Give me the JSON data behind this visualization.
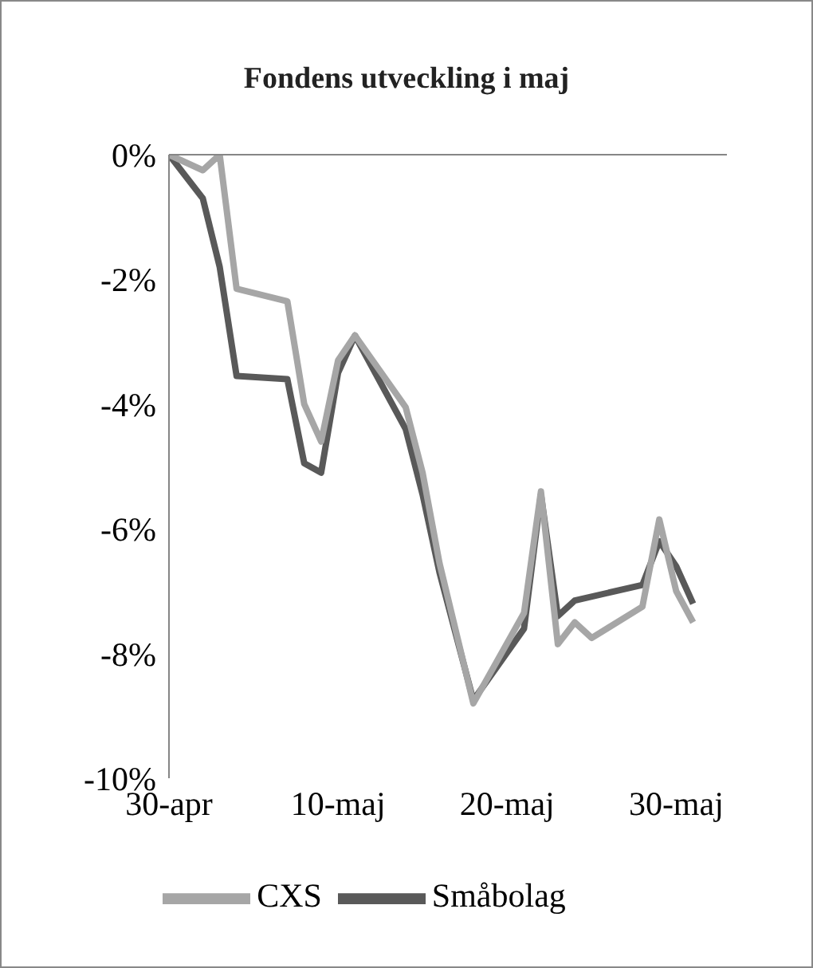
{
  "chart_data": {
    "type": "line",
    "title": "Fondens utveckling i maj",
    "series": [
      {
        "name": "Småbolag",
        "color": "#595959",
        "x": [
          "--04-30",
          "--05-02",
          "--05-03",
          "--05-04",
          "--05-07",
          "--05-08",
          "--05-09",
          "--05-10",
          "--05-11",
          "--05-14",
          "--05-15",
          "--05-16",
          "--05-18",
          "--05-21",
          "--05-22",
          "--05-23",
          "--05-24",
          "--05-28",
          "--05-29",
          "--05-30",
          "--05-31"
        ],
        "values": [
          0,
          -0.7,
          -1.8,
          -3.55,
          -3.6,
          -4.95,
          -5.1,
          -3.5,
          -2.9,
          -4.4,
          -5.45,
          -6.7,
          -8.75,
          -7.6,
          -5.45,
          -7.4,
          -7.15,
          -6.9,
          -6.2,
          -6.6,
          -7.2
        ]
      },
      {
        "name": "CXS",
        "color": "#a6a6a6",
        "x": [
          "--04-30",
          "--05-02",
          "--05-03",
          "--05-04",
          "--05-07",
          "--05-08",
          "--05-09",
          "--05-10",
          "--05-11",
          "--05-14",
          "--05-15",
          "--05-16",
          "--05-18",
          "--05-21",
          "--05-22",
          "--05-23",
          "--05-24",
          "--05-25",
          "--05-28",
          "--05-29",
          "--05-30",
          "--05-31"
        ],
        "values": [
          0,
          -0.25,
          0,
          -2.15,
          -2.35,
          -4.0,
          -4.6,
          -3.3,
          -2.9,
          -4.05,
          -5.1,
          -6.55,
          -8.8,
          -7.35,
          -5.4,
          -7.85,
          -7.5,
          -7.75,
          -7.25,
          -5.85,
          -7.0,
          -7.5
        ]
      }
    ],
    "xlim": [
      "--04-30",
      "--06-02"
    ],
    "xticks": [
      {
        "value": "--04-30",
        "label": "30-apr"
      },
      {
        "value": "--05-10",
        "label": "10-maj"
      },
      {
        "value": "--05-20",
        "label": "20-maj"
      },
      {
        "value": "--05-30",
        "label": "30-maj"
      }
    ],
    "ylim": [
      -10,
      0
    ],
    "yticks": [
      {
        "value": -10,
        "label": "-10%"
      },
      {
        "value": -8,
        "label": "-8%"
      },
      {
        "value": -6,
        "label": "-6%"
      },
      {
        "value": -4,
        "label": "-4%"
      },
      {
        "value": -2,
        "label": "-2%"
      },
      {
        "value": 0,
        "label": "0%"
      }
    ],
    "grid": false,
    "legend": "bottom",
    "marker": "none",
    "line_style": "solid"
  }
}
